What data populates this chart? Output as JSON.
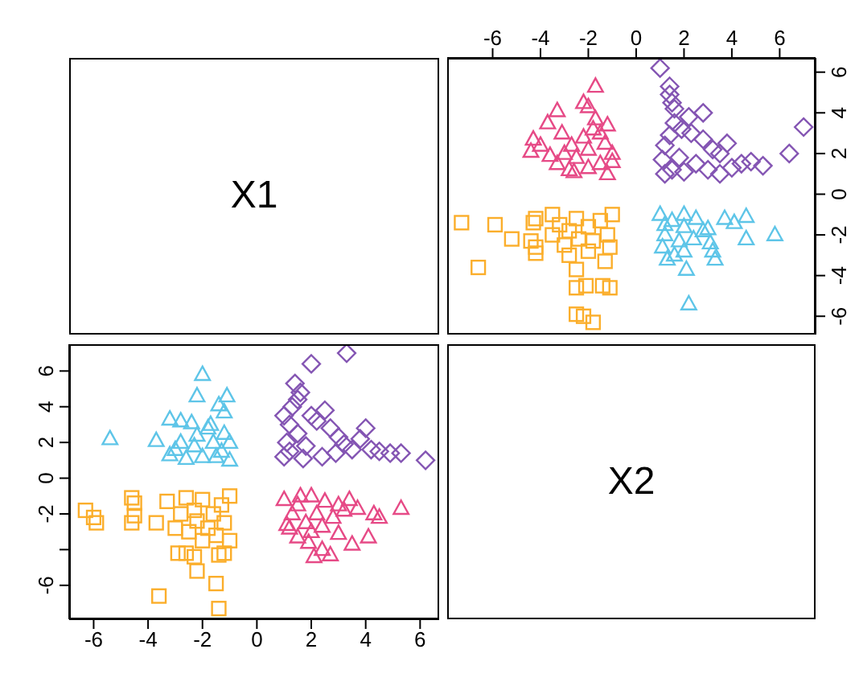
{
  "chart_data": [
    {
      "type": "other",
      "title": "X1"
    },
    {
      "type": "scatter",
      "xlim": [
        -7.9,
        7.5
      ],
      "ylim": [
        -6.9,
        6.7
      ],
      "xticks": [
        -6,
        -4,
        -2,
        0,
        2,
        4,
        6
      ],
      "yticks": [
        -6,
        -4,
        -2,
        0,
        2,
        4,
        6
      ],
      "series": [
        {
          "color": "#8455b3",
          "marker": "diamond",
          "x": [
            1.2,
            2.0,
            3.0,
            4.0,
            4.4,
            5.3,
            4.8,
            6.4,
            7.0,
            1.5,
            2.5,
            1.8,
            3.5,
            3.2,
            3.8,
            2.8,
            2.3,
            1.9,
            1.6,
            2.8,
            2.2,
            1.6,
            1.5,
            1.4,
            1.4,
            1.0,
            1.2,
            3.5,
            1.1,
            1.4
          ],
          "values": [
            1.0,
            1.1,
            1.2,
            1.3,
            1.5,
            1.4,
            1.6,
            2.0,
            3.3,
            1.2,
            1.5,
            1.8,
            2.0,
            2.2,
            2.5,
            2.7,
            3.0,
            3.2,
            3.5,
            4.0,
            3.8,
            4.2,
            4.5,
            4.9,
            5.3,
            6.2,
            2.4,
            1.0,
            1.7,
            2.9
          ]
        },
        {
          "color": "#e64a86",
          "marker": "triangle",
          "x": [
            -1.2,
            -2.0,
            -1.5,
            -2.5,
            -1.0,
            -2.0,
            -1.3,
            -2.2,
            -1.5,
            -2.8,
            -3.0,
            -1.0,
            -2.7,
            -1.2,
            -2.6,
            -3.3,
            -3.6,
            -4.4,
            -4.0,
            -4.3,
            -3.1,
            -3.7,
            -3.3,
            -2.0,
            -2.2,
            -1.7,
            -1.8,
            -1.7
          ],
          "values": [
            1.0,
            1.3,
            1.5,
            1.8,
            2.0,
            2.2,
            2.5,
            2.8,
            3.0,
            1.2,
            2.0,
            1.6,
            2.4,
            3.4,
            1.1,
            1.5,
            1.9,
            2.1,
            2.4,
            2.7,
            3.0,
            3.5,
            4.1,
            4.3,
            4.5,
            5.3,
            3.2,
            3.7
          ]
        },
        {
          "color": "#5ec5e8",
          "marker": "triangle",
          "x": [
            1.0,
            1.5,
            2.0,
            1.2,
            1.8,
            1.1,
            1.6,
            2.5,
            2.8,
            2.4,
            2.0,
            1.2,
            2.0,
            1.3,
            2.2,
            2.1,
            3.3,
            3.2,
            4.6,
            5.8,
            3.0,
            4.1,
            4.6,
            3.7,
            3.1
          ],
          "values": [
            -1.0,
            -1.3,
            -1.6,
            -2.0,
            -2.3,
            -2.6,
            -3.0,
            -1.2,
            -1.8,
            -2.2,
            -2.8,
            -1.5,
            -1.0,
            -3.2,
            -5.4,
            -3.7,
            -3.2,
            -2.8,
            -2.2,
            -2.0,
            -1.7,
            -1.4,
            -1.1,
            -1.2,
            -2.4
          ]
        },
        {
          "color": "#fbae2b",
          "marker": "square",
          "x": [
            -1.0,
            -1.5,
            -2.0,
            -1.2,
            -1.8,
            -1.1,
            -2.8,
            -2.5,
            -2.8,
            -2.4,
            -2.0,
            -3.2,
            -3.5,
            -1.3,
            -3.0,
            -1.8,
            -2.2,
            -2.5,
            -1.1,
            -1.4,
            -2.1,
            -2.5,
            -2.5,
            -4.2,
            -4.2,
            -4.4,
            -5.2,
            -6.6,
            -5.9,
            -7.3,
            -4.3,
            -4.2,
            -3.5
          ],
          "values": [
            -1.0,
            -1.3,
            -1.6,
            -2.0,
            -2.3,
            -2.6,
            -3.0,
            -1.2,
            -1.8,
            -2.2,
            -2.8,
            -1.5,
            -1.0,
            -3.3,
            -2.5,
            -6.3,
            -6.0,
            -5.9,
            -4.6,
            -4.5,
            -4.5,
            -4.6,
            -3.7,
            -2.9,
            -2.6,
            -2.3,
            -2.2,
            -3.6,
            -1.5,
            -1.4,
            -1.4,
            -1.2,
            -2.0
          ]
        }
      ]
    },
    {
      "type": "scatter",
      "xlim": [
        -6.9,
        6.7
      ],
      "ylim": [
        -7.9,
        7.5
      ],
      "xticks": [
        -6,
        -4,
        -2,
        0,
        2,
        4,
        6
      ],
      "yticks": [
        -6,
        {
          "value": -4,
          "label": null
        },
        -2,
        0,
        2,
        4,
        6
      ],
      "series": [
        {
          "color": "#8455b3",
          "marker": "diamond",
          "x": [
            1.0,
            1.1,
            1.2,
            1.3,
            1.5,
            1.4,
            1.6,
            2.0,
            3.3,
            1.2,
            1.5,
            1.8,
            2.0,
            2.2,
            2.5,
            2.7,
            3.0,
            3.2,
            3.5,
            4.0,
            3.8,
            4.2,
            4.5,
            4.9,
            5.3,
            6.2,
            2.4,
            1.0,
            1.7,
            2.9
          ],
          "values": [
            1.2,
            2.0,
            3.0,
            4.0,
            4.4,
            5.3,
            4.8,
            6.4,
            7.0,
            1.5,
            2.5,
            1.8,
            3.5,
            3.2,
            3.8,
            2.8,
            2.3,
            1.9,
            1.6,
            2.8,
            2.2,
            1.6,
            1.5,
            1.4,
            1.4,
            1.0,
            1.2,
            3.5,
            1.1,
            1.4
          ]
        },
        {
          "color": "#e64a86",
          "marker": "triangle",
          "x": [
            1.0,
            1.3,
            1.5,
            1.8,
            2.0,
            2.2,
            2.5,
            2.8,
            3.0,
            1.2,
            2.0,
            1.6,
            2.4,
            3.4,
            1.1,
            1.5,
            1.9,
            2.1,
            2.4,
            2.7,
            3.0,
            3.5,
            4.1,
            4.3,
            4.5,
            5.3,
            3.2,
            3.7
          ],
          "values": [
            -1.2,
            -2.0,
            -1.5,
            -2.5,
            -1.0,
            -2.0,
            -1.3,
            -2.2,
            -1.5,
            -2.8,
            -3.0,
            -1.0,
            -2.7,
            -1.2,
            -2.6,
            -3.3,
            -3.6,
            -4.4,
            -4.0,
            -4.3,
            -3.1,
            -3.7,
            -3.3,
            -2.0,
            -2.2,
            -1.7,
            -1.8,
            -1.7
          ]
        },
        {
          "color": "#5ec5e8",
          "marker": "triangle",
          "x": [
            -1.0,
            -1.3,
            -1.6,
            -2.0,
            -2.3,
            -2.6,
            -3.0,
            -1.2,
            -1.8,
            -2.2,
            -2.8,
            -1.5,
            -1.0,
            -3.2,
            -5.4,
            -3.7,
            -3.2,
            -2.8,
            -2.2,
            -2.0,
            -1.7,
            -1.4,
            -1.1,
            -1.2,
            -2.4
          ],
          "values": [
            1.0,
            1.5,
            2.0,
            1.2,
            1.8,
            1.1,
            1.6,
            2.5,
            2.8,
            2.4,
            2.0,
            1.2,
            2.0,
            1.3,
            2.2,
            2.1,
            3.3,
            3.2,
            4.6,
            5.8,
            3.0,
            4.1,
            4.6,
            3.7,
            3.1
          ]
        },
        {
          "color": "#fbae2b",
          "marker": "square",
          "x": [
            -1.0,
            -1.3,
            -1.6,
            -2.0,
            -2.3,
            -2.6,
            -3.0,
            -1.2,
            -1.8,
            -2.2,
            -2.8,
            -1.5,
            -1.0,
            -3.3,
            -2.5,
            -6.3,
            -6.0,
            -5.9,
            -4.6,
            -4.5,
            -4.5,
            -4.6,
            -3.7,
            -2.9,
            -2.6,
            -2.3,
            -2.2,
            -3.6,
            -1.5,
            -1.4,
            -1.4,
            -1.2,
            -2.0
          ],
          "values": [
            -1.0,
            -1.5,
            -2.0,
            -1.2,
            -1.8,
            -1.1,
            -2.8,
            -2.5,
            -2.8,
            -2.4,
            -2.0,
            -3.2,
            -3.5,
            -1.3,
            -3.0,
            -1.8,
            -2.2,
            -2.5,
            -1.1,
            -1.4,
            -2.1,
            -2.5,
            -2.5,
            -4.2,
            -4.2,
            -4.4,
            -5.2,
            -6.6,
            -5.9,
            -7.3,
            -4.3,
            -4.2,
            -3.5
          ]
        }
      ]
    },
    {
      "type": "other",
      "title": "X2"
    }
  ]
}
